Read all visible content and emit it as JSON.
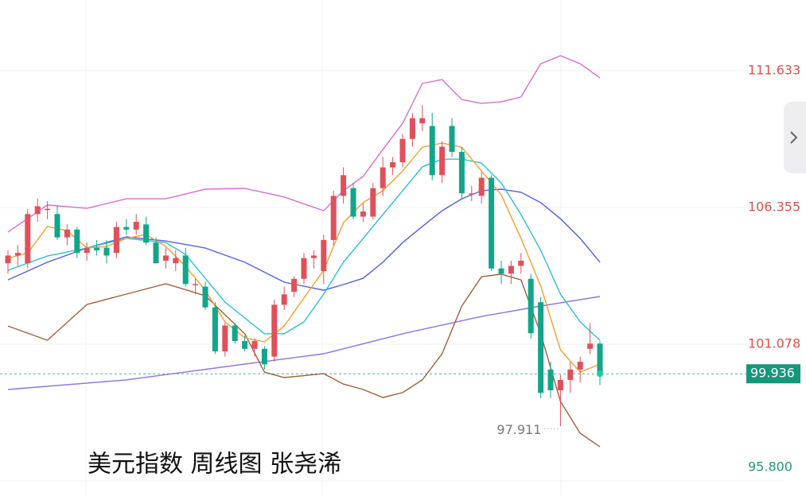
{
  "chart_data": {
    "type": "candlestick",
    "title": "美元指数 周线图 张尧浠",
    "up_color": "#e0505a",
    "down_color": "#12a58a",
    "open": [
      104.2,
      104.5,
      104.2,
      106.1,
      106.3,
      106.1,
      105.2,
      105.5,
      104.6,
      104.8,
      104.8,
      104.6,
      105.6,
      105.5,
      105.7,
      105.0,
      104.3,
      104.2,
      104.5,
      103.4,
      103.3,
      102.5,
      100.8,
      101.8,
      101.2,
      100.9,
      100.9,
      100.6,
      102.6,
      103.1,
      103.6,
      104.4,
      103.9,
      105.1,
      106.8,
      107.1,
      106.0,
      106.0,
      107.1,
      107.9,
      108.1,
      109.0,
      109.6,
      109.5,
      107.6,
      109.5,
      108.5,
      106.9,
      106.8,
      107.5,
      104.0,
      103.8,
      104.1,
      103.6,
      102.7,
      100.1,
      99.3,
      99.7,
      100.1,
      100.9,
      101.1
    ],
    "high": [
      104.7,
      104.9,
      106.3,
      106.7,
      106.6,
      106.4,
      105.7,
      105.6,
      105.0,
      105.1,
      105.1,
      105.8,
      105.9,
      106.1,
      106.0,
      105.2,
      104.8,
      104.7,
      104.8,
      103.6,
      103.5,
      102.7,
      101.9,
      101.9,
      101.4,
      101.3,
      101.0,
      102.8,
      103.3,
      103.7,
      104.6,
      104.7,
      105.3,
      107.0,
      107.9,
      107.3,
      106.5,
      107.3,
      108.3,
      108.3,
      109.2,
      110.0,
      110.3,
      110.0,
      108.9,
      109.8,
      108.7,
      107.2,
      107.7,
      107.6,
      104.3,
      104.3,
      104.6,
      103.8,
      102.9,
      100.4,
      99.9,
      100.4,
      100.6,
      101.9,
      101.2
    ],
    "low": [
      103.8,
      104.1,
      104.0,
      105.8,
      105.9,
      105.1,
      104.9,
      104.4,
      104.3,
      104.5,
      104.2,
      104.4,
      105.3,
      105.3,
      104.9,
      104.2,
      104.0,
      103.9,
      103.3,
      103.0,
      102.4,
      100.7,
      100.6,
      101.1,
      100.8,
      100.6,
      100.1,
      100.4,
      102.4,
      102.9,
      103.4,
      104.0,
      103.4,
      104.9,
      106.5,
      105.9,
      105.8,
      105.9,
      106.8,
      107.6,
      107.9,
      108.7,
      109.3,
      107.4,
      107.3,
      108.3,
      106.7,
      106.6,
      106.5,
      103.9,
      103.4,
      103.4,
      103.8,
      101.3,
      99.0,
      99.0,
      97.911,
      99.2,
      99.6,
      100.7,
      99.5
    ],
    "close": [
      104.5,
      104.6,
      106.1,
      106.4,
      106.3,
      105.2,
      105.5,
      104.6,
      104.8,
      104.7,
      104.5,
      105.6,
      105.5,
      105.8,
      105.0,
      104.2,
      104.5,
      104.4,
      103.4,
      103.4,
      102.5,
      100.8,
      101.8,
      101.2,
      100.9,
      101.2,
      100.3,
      102.6,
      103.0,
      103.6,
      104.4,
      104.5,
      105.1,
      106.8,
      107.6,
      106.0,
      106.2,
      107.1,
      107.9,
      108.1,
      109.0,
      109.8,
      109.8,
      107.6,
      108.7,
      108.5,
      106.9,
      106.9,
      107.5,
      104.0,
      103.8,
      104.1,
      104.3,
      101.5,
      99.2,
      99.3,
      99.7,
      100.1,
      100.4,
      101.1,
      99.936
    ],
    "lines": [
      {
        "color": "#9070e0",
        "x": [
          0,
          12,
          24,
          32,
          40,
          48,
          54,
          60
        ],
        "values": [
          99.33,
          99.7,
          100.31,
          100.71,
          101.48,
          102.15,
          102.55,
          102.92
        ]
      },
      {
        "color": "#d86ed0",
        "x": [
          0,
          4,
          8,
          12,
          16,
          20,
          24,
          28,
          32,
          34,
          36,
          38,
          40,
          42,
          44,
          46,
          48,
          50,
          52,
          54,
          56,
          58,
          60
        ],
        "values": [
          105.4,
          106.45,
          106.32,
          106.69,
          106.69,
          107.06,
          107.09,
          106.76,
          106.23,
          107.0,
          107.55,
          108.59,
          109.6,
          111.14,
          111.29,
          110.52,
          110.37,
          110.43,
          110.62,
          111.9,
          112.21,
          111.9,
          111.35
        ]
      },
      {
        "color": "#a0603a",
        "x": [
          0,
          4,
          8,
          12,
          16,
          20,
          24,
          26,
          28,
          32,
          34,
          36,
          38,
          40,
          42,
          44,
          46,
          48,
          50,
          52,
          54,
          56,
          58,
          60
        ],
        "values": [
          101.78,
          101.23,
          102.61,
          103.01,
          103.41,
          102.95,
          101.48,
          100.0,
          99.79,
          99.94,
          99.54,
          99.33,
          99.02,
          99.21,
          99.7,
          100.71,
          102.55,
          103.68,
          103.78,
          103.56,
          101.48,
          98.87,
          97.64,
          97.12
        ]
      },
      {
        "color": "#5060e0",
        "x": [
          0,
          4,
          8,
          12,
          16,
          20,
          24,
          28,
          32,
          34,
          36,
          38,
          40,
          42,
          44,
          46,
          48,
          50,
          52,
          54,
          56,
          58,
          60
        ],
        "values": [
          103.56,
          104.24,
          104.79,
          105.22,
          105.06,
          104.79,
          104.24,
          103.47,
          103.16,
          103.38,
          103.62,
          104.24,
          105.0,
          105.62,
          106.23,
          106.69,
          107.0,
          107.06,
          106.94,
          106.54,
          105.92,
          105.16,
          104.24
        ]
      },
      {
        "color": "#2cc0d0",
        "x": [
          0,
          4,
          8,
          12,
          16,
          18,
          20,
          22,
          24,
          26,
          28,
          30,
          32,
          34,
          36,
          38,
          40,
          42,
          44,
          46,
          48,
          50,
          52,
          54,
          56,
          58,
          60
        ],
        "values": [
          103.93,
          104.48,
          104.79,
          105.16,
          105.0,
          104.54,
          103.62,
          102.7,
          102.09,
          101.48,
          101.48,
          101.94,
          103.01,
          104.24,
          105.16,
          106.08,
          107.0,
          107.92,
          108.22,
          108.22,
          108.07,
          107.3,
          106.08,
          104.7,
          103.01,
          101.94,
          101.23
        ]
      },
      {
        "color": "#f0a030",
        "x": [
          0,
          2,
          4,
          6,
          8,
          10,
          12,
          14,
          16,
          18,
          20,
          22,
          24,
          26,
          28,
          30,
          32,
          34,
          36,
          38,
          40,
          42,
          44,
          46,
          48,
          50,
          52,
          54,
          56,
          58,
          60
        ],
        "values": [
          104.39,
          104.6,
          105.62,
          105.46,
          104.79,
          104.85,
          105.16,
          105.31,
          104.85,
          104.08,
          103.16,
          101.94,
          101.32,
          101.17,
          101.78,
          102.86,
          103.93,
          105.77,
          106.54,
          107.0,
          107.76,
          108.68,
          108.84,
          108.68,
          107.76,
          106.84,
          105.16,
          103.32,
          100.86,
          100.0,
          100.31
        ]
      }
    ],
    "ylim": [
      95.22,
      114.36
    ],
    "yticks": [
      111.633,
      106.355,
      101.078,
      {
        "value": 95.8,
        "label": "95.800"
      }
    ],
    "grid": true
  }
}
